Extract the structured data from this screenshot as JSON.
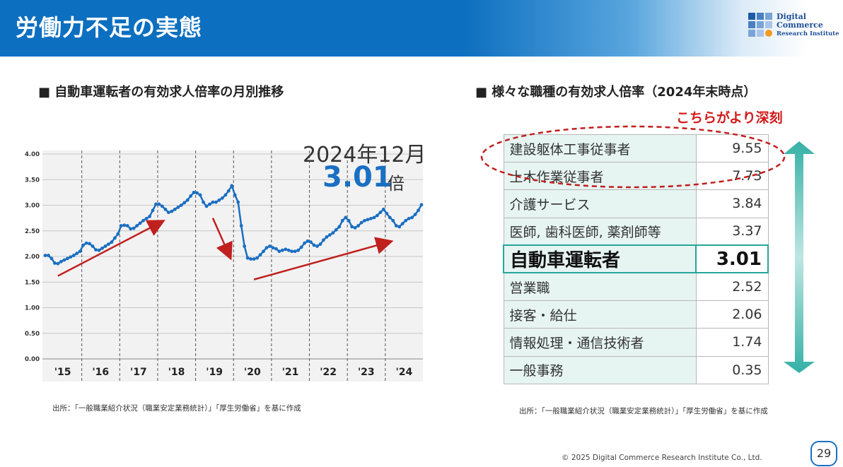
{
  "header": {
    "title": "労働力不足の実態",
    "logo": {
      "line1": "Digital",
      "line2": "Commerce",
      "line3": "Research Institute"
    }
  },
  "left": {
    "section_title": "■ 自動車運転者の有効求人倍率の月別推移",
    "callout_date": "2024年12月",
    "callout_value": "3.01",
    "callout_unit": "倍",
    "source": "出所：「一般職業紹介状況（職業安定業務統計）」「厚生労働省」を基に作成"
  },
  "right": {
    "section_title": "■ 様々な職種の有効求人倍率（2024年末時点）",
    "note": "こちらがより深刻",
    "rows": [
      {
        "name": "建設躯体工事従事者",
        "value": "9.55"
      },
      {
        "name": "土木作業従事者",
        "value": "7.73"
      },
      {
        "name": "介護サービス",
        "value": "3.84"
      },
      {
        "name": "医師, 歯科医師, 薬剤師等",
        "value": "3.37"
      },
      {
        "name": "自動車運転者",
        "value": "3.01"
      },
      {
        "name": "営業職",
        "value": "2.52"
      },
      {
        "name": "接客・給仕",
        "value": "2.06"
      },
      {
        "name": "情報処理・通信技術者",
        "value": "1.74"
      },
      {
        "name": "一般事務",
        "value": "0.35"
      }
    ],
    "source": "出所：「一般職業紹介状況（職業安定業務統計）」「厚生労働省」を基に作成"
  },
  "footer": {
    "copyright": "© 2025 Digital Commerce Research Institute Co., Ltd.",
    "page": "29"
  },
  "colors": {
    "line": "#1a6fc2",
    "arrow": "#c0201e",
    "teal": "#26a69a",
    "header": "#0d6fc0"
  },
  "chart_data": {
    "type": "line",
    "title": "",
    "xlabel": "",
    "ylabel": "",
    "ylim": [
      0,
      4
    ],
    "yticks": [
      "0.00",
      "0.50",
      "1.00",
      "1.50",
      "2.00",
      "2.50",
      "3.00",
      "3.50",
      "4.00"
    ],
    "xtick_labels": [
      "'15",
      "'16",
      "'17",
      "'18",
      "'19",
      "'20",
      "'21",
      "'22",
      "'23",
      "'24"
    ],
    "grid": true,
    "series": [
      {
        "values": [
          2.02,
          2.02,
          1.96,
          1.87,
          1.86,
          1.9,
          1.93,
          1.96,
          1.99,
          2.02,
          2.06,
          2.1,
          2.22,
          2.26,
          2.25,
          2.2,
          2.13,
          2.12,
          2.16,
          2.2,
          2.24,
          2.28,
          2.36,
          2.44,
          2.6,
          2.61,
          2.6,
          2.54,
          2.55,
          2.6,
          2.65,
          2.7,
          2.74,
          2.78,
          2.9,
          3.02,
          3.02,
          2.98,
          2.92,
          2.86,
          2.88,
          2.92,
          2.96,
          3.0,
          3.05,
          3.1,
          3.18,
          3.25,
          3.24,
          3.2,
          3.06,
          2.98,
          3.02,
          3.06,
          3.06,
          3.1,
          3.14,
          3.2,
          3.28,
          3.38,
          3.2,
          3.06,
          2.6,
          2.2,
          1.97,
          1.95,
          1.95,
          1.97,
          2.03,
          2.1,
          2.17,
          2.2,
          2.17,
          2.15,
          2.1,
          2.12,
          2.14,
          2.12,
          2.1,
          2.1,
          2.12,
          2.18,
          2.26,
          2.3,
          2.28,
          2.22,
          2.2,
          2.24,
          2.32,
          2.38,
          2.42,
          2.46,
          2.52,
          2.58,
          2.7,
          2.76,
          2.7,
          2.58,
          2.56,
          2.6,
          2.66,
          2.7,
          2.72,
          2.74,
          2.76,
          2.8,
          2.86,
          2.92,
          2.84,
          2.76,
          2.7,
          2.6,
          2.58,
          2.64,
          2.7,
          2.74,
          2.76,
          2.82,
          2.9,
          3.01
        ]
      }
    ]
  }
}
